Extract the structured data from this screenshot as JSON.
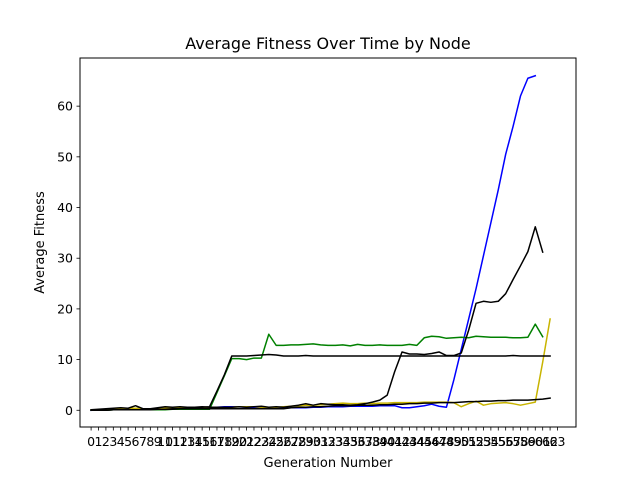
{
  "chart_data": {
    "type": "line",
    "title": "Average Fitness Over Time by Node",
    "xlabel": "Generation Number",
    "ylabel": "Average Fitness",
    "xlim": [
      -1.5,
      65.5
    ],
    "ylim": [
      -3.3,
      69.5
    ],
    "grid": false,
    "legend": "none",
    "x_ticks": [
      0,
      1,
      2,
      3,
      4,
      5,
      6,
      7,
      8,
      9,
      10,
      11,
      12,
      13,
      14,
      15,
      16,
      17,
      18,
      19,
      20,
      21,
      22,
      23,
      24,
      25,
      26,
      27,
      28,
      29,
      30,
      31,
      32,
      33,
      34,
      35,
      36,
      37,
      38,
      39,
      40,
      41,
      42,
      43,
      44,
      45,
      46,
      47,
      48,
      49,
      50,
      51,
      52,
      53,
      54,
      55,
      56,
      57,
      58,
      59,
      60,
      61,
      62,
      63
    ],
    "y_ticks": [
      0,
      10,
      20,
      30,
      40,
      50,
      60
    ],
    "series": [
      {
        "color": "#0000ff",
        "values": [
          0.0,
          0.1,
          0.2,
          0.2,
          0.3,
          0.3,
          0.4,
          0.3,
          0.3,
          0.3,
          0.4,
          0.4,
          0.4,
          0.4,
          0.5,
          0.5,
          0.6,
          0.6,
          0.7,
          0.7,
          0.7,
          0.6,
          0.6,
          0.5,
          0.6,
          0.5,
          0.4,
          0.5,
          0.5,
          0.5,
          0.6,
          0.6,
          0.7,
          0.7,
          0.7,
          0.8,
          0.8,
          0.8,
          0.8,
          0.9,
          0.9,
          0.9,
          0.5,
          0.5,
          0.7,
          0.9,
          1.2,
          0.8,
          0.6,
          6.0,
          12.0,
          18.0,
          24.0,
          30.5,
          37.0,
          43.5,
          50.5,
          56.0,
          62.0,
          65.5,
          66.0
        ]
      },
      {
        "color": "#c8b400",
        "values": [
          0.1,
          0.1,
          0.2,
          0.3,
          0.3,
          0.4,
          0.4,
          0.3,
          0.3,
          0.3,
          0.4,
          0.4,
          0.5,
          0.5,
          0.5,
          0.6,
          0.6,
          0.6,
          0.6,
          0.6,
          0.7,
          0.7,
          0.7,
          0.6,
          0.6,
          0.6,
          0.7,
          0.8,
          0.9,
          1.0,
          1.0,
          1.1,
          1.2,
          1.3,
          1.4,
          1.3,
          1.3,
          1.4,
          1.3,
          1.4,
          1.4,
          1.5,
          1.5,
          1.5,
          1.5,
          1.6,
          1.6,
          1.6,
          1.6,
          1.5,
          0.7,
          1.3,
          1.8,
          1.0,
          1.3,
          1.4,
          1.5,
          1.3,
          1.0,
          1.3,
          1.6,
          9.5,
          18.0
        ]
      },
      {
        "color": "#008000",
        "values": [
          0.0,
          0.0,
          0.0,
          0.1,
          0.1,
          0.1,
          0.1,
          0.1,
          0.1,
          0.1,
          0.1,
          0.2,
          0.2,
          0.2,
          0.2,
          0.2,
          0.2,
          3.5,
          6.8,
          10.2,
          10.2,
          10.0,
          10.3,
          10.3,
          15.0,
          12.8,
          12.8,
          12.9,
          12.9,
          13.0,
          13.1,
          12.9,
          12.8,
          12.8,
          12.9,
          12.7,
          13.0,
          12.8,
          12.8,
          12.9,
          12.8,
          12.8,
          12.8,
          13.0,
          12.8,
          14.3,
          14.6,
          14.5,
          14.2,
          14.3,
          14.4,
          14.3,
          14.6,
          14.5,
          14.4,
          14.4,
          14.4,
          14.3,
          14.3,
          14.4,
          17.0,
          14.5
        ]
      },
      {
        "color": "#000000",
        "values": [
          0.1,
          0.2,
          0.3,
          0.4,
          0.5,
          0.4,
          0.9,
          0.3,
          0.3,
          0.5,
          0.7,
          0.6,
          0.7,
          0.6,
          0.6,
          0.7,
          0.6,
          0.6,
          0.6,
          0.6,
          0.7,
          0.6,
          0.7,
          0.8,
          0.6,
          0.7,
          0.6,
          0.8,
          1.0,
          1.3,
          1.0,
          1.3,
          1.2,
          1.1,
          1.1,
          1.0,
          1.1,
          1.3,
          1.6,
          2.0,
          3.0,
          7.6,
          11.5,
          11.1,
          11.1,
          11.0,
          11.2,
          11.5,
          10.8,
          10.8,
          11.3,
          15.8,
          21.1,
          21.5,
          21.3,
          21.5,
          23.0,
          25.8,
          28.5,
          31.3,
          36.2,
          31.2
        ]
      },
      {
        "color": "#000000",
        "values": [
          0.0,
          0.0,
          0.0,
          0.1,
          0.1,
          0.1,
          0.1,
          0.1,
          0.2,
          0.2,
          0.2,
          0.3,
          0.3,
          0.4,
          0.5,
          0.6,
          0.7,
          3.8,
          7.0,
          10.7,
          10.7,
          10.7,
          10.8,
          10.9,
          11.0,
          10.9,
          10.7,
          10.7,
          10.7,
          10.8,
          10.7,
          10.7,
          10.7,
          10.7,
          10.7,
          10.7,
          10.7,
          10.7,
          10.7,
          10.7,
          10.7,
          10.7,
          10.7,
          10.7,
          10.7,
          10.7,
          10.7,
          10.7,
          10.7,
          10.7,
          10.7,
          10.7,
          10.7,
          10.7,
          10.7,
          10.7,
          10.7,
          10.8,
          10.7,
          10.7,
          10.7,
          10.7,
          10.7
        ]
      },
      {
        "color": "#000000",
        "values": [
          0.0,
          0.0,
          0.0,
          0.1,
          0.1,
          0.1,
          0.1,
          0.1,
          0.1,
          0.2,
          0.2,
          0.2,
          0.3,
          0.3,
          0.3,
          0.3,
          0.3,
          0.3,
          0.3,
          0.3,
          0.3,
          0.3,
          0.3,
          0.3,
          0.3,
          0.3,
          0.3,
          0.5,
          0.6,
          0.6,
          0.7,
          0.7,
          0.8,
          0.9,
          0.9,
          0.9,
          1.0,
          1.0,
          1.0,
          1.1,
          1.1,
          1.2,
          1.2,
          1.3,
          1.3,
          1.4,
          1.4,
          1.5,
          1.5,
          1.5,
          1.6,
          1.7,
          1.7,
          1.8,
          1.8,
          1.9,
          1.9,
          2.0,
          2.0,
          2.0,
          2.1,
          2.2,
          2.4
        ]
      }
    ]
  }
}
